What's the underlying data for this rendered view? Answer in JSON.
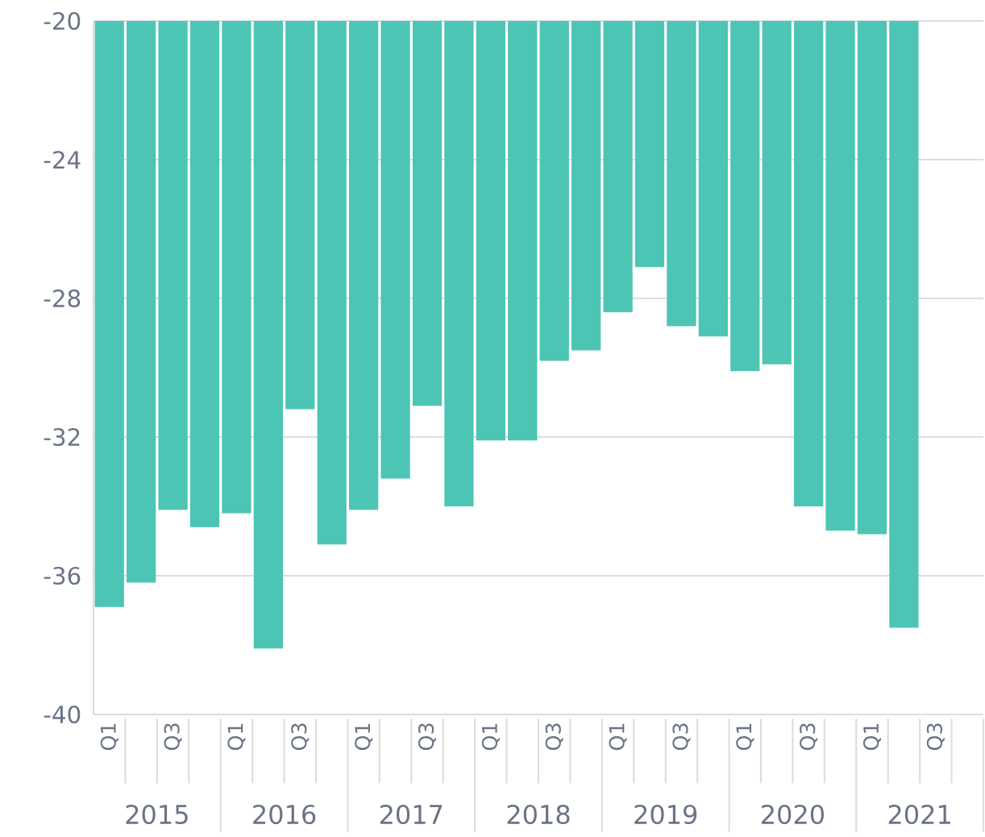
{
  "chart_data": {
    "type": "bar",
    "categories": [
      "Q1",
      null,
      "Q3",
      null,
      "Q1",
      null,
      "Q3",
      null,
      "Q1",
      null,
      "Q3",
      null,
      "Q1",
      null,
      "Q3",
      null,
      "Q1",
      null,
      "Q3",
      null,
      "Q1",
      null,
      "Q3",
      null,
      "Q1",
      null,
      "Q3",
      null
    ],
    "values": [
      -36.9,
      -36.2,
      -34.1,
      -34.6,
      -34.2,
      -38.1,
      -31.2,
      -35.1,
      -34.1,
      -33.2,
      -31.1,
      -34.0,
      -32.1,
      -32.1,
      -29.8,
      -29.5,
      -28.4,
      -27.1,
      -28.8,
      -29.1,
      -30.1,
      -29.9,
      -34.0,
      -34.7,
      -34.8,
      -37.5,
      null,
      null
    ],
    "color": "#4dc5b5",
    "ylim": [
      -40,
      -20
    ],
    "yticks": [
      -40,
      -36,
      -32,
      -28,
      -24,
      -20
    ],
    "grid": "y",
    "annotations": [
      "2015",
      "2016",
      "2017",
      "2018",
      "2019",
      "2020",
      "2021"
    ]
  }
}
